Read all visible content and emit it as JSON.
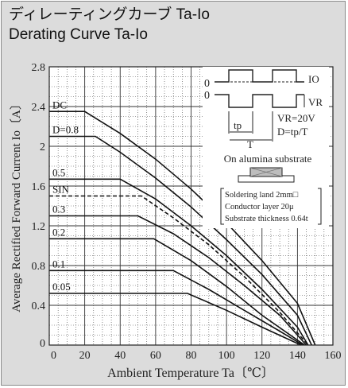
{
  "title_ja": "ディレーティングカーブ Ta-Io",
  "title_en": "Derating Curve Ta-Io",
  "chart_data": {
    "type": "line",
    "title": "Derating Curve Ta-Io",
    "xlabel": "Ambient Temperature Ta〔℃〕",
    "ylabel": "Average Rectified Forward Current Io〔A〕",
    "xlim": [
      0,
      160
    ],
    "ylim": [
      0,
      2.8
    ],
    "xticks": [
      "0",
      "20",
      "40",
      "60",
      "80",
      "100",
      "120",
      "140",
      "160"
    ],
    "yticks": [
      "0",
      "0.4",
      "0.8",
      "1.2",
      "1.6",
      "2",
      "2.4",
      "2.8"
    ],
    "grid": true,
    "series": [
      {
        "name": "DC",
        "dashed": false,
        "x": [
          0,
          20,
          40,
          60,
          80,
          100,
          120,
          140,
          150
        ],
        "y": [
          2.35,
          2.35,
          2.13,
          1.87,
          1.57,
          1.23,
          0.85,
          0.42,
          0
        ]
      },
      {
        "name": "D=0.8",
        "dashed": false,
        "x": [
          0,
          26,
          40,
          60,
          80,
          100,
          120,
          140,
          148
        ],
        "y": [
          2.1,
          2.1,
          1.94,
          1.68,
          1.39,
          1.06,
          0.71,
          0.3,
          0
        ]
      },
      {
        "name": "0.5",
        "dashed": false,
        "x": [
          0,
          40,
          60,
          80,
          100,
          120,
          140,
          146
        ],
        "y": [
          1.67,
          1.67,
          1.47,
          1.2,
          0.9,
          0.56,
          0.18,
          0
        ]
      },
      {
        "name": "SIN",
        "dashed": true,
        "x": [
          0,
          52,
          70,
          90,
          110,
          130,
          146
        ],
        "y": [
          1.5,
          1.5,
          1.28,
          1.01,
          0.69,
          0.33,
          0
        ]
      },
      {
        "name": "0.3",
        "dashed": false,
        "x": [
          0,
          50,
          70,
          90,
          110,
          130,
          145
        ],
        "y": [
          1.3,
          1.3,
          1.12,
          0.88,
          0.6,
          0.3,
          0
        ]
      },
      {
        "name": "0.2",
        "dashed": false,
        "x": [
          0,
          59,
          80,
          100,
          120,
          144
        ],
        "y": [
          1.07,
          1.07,
          0.85,
          0.59,
          0.3,
          0
        ]
      },
      {
        "name": "0.1",
        "dashed": false,
        "x": [
          0,
          70,
          90,
          110,
          130,
          143
        ],
        "y": [
          0.75,
          0.75,
          0.56,
          0.35,
          0.14,
          0
        ]
      },
      {
        "name": "0.05",
        "dashed": false,
        "x": [
          0,
          78,
          100,
          120,
          142
        ],
        "y": [
          0.52,
          0.52,
          0.35,
          0.18,
          0
        ]
      }
    ],
    "inset": {
      "waveform_labels": [
        "0",
        "0",
        "IO",
        "VR",
        "tp",
        "T"
      ],
      "condition_1": "VR=20V",
      "condition_2": "D=tp/T",
      "substrate_title": "On alumina substrate",
      "notes": [
        "Soldering land 2mm□",
        "Conductor layer 20μ",
        "Substrate thickness 0.64t"
      ]
    }
  }
}
